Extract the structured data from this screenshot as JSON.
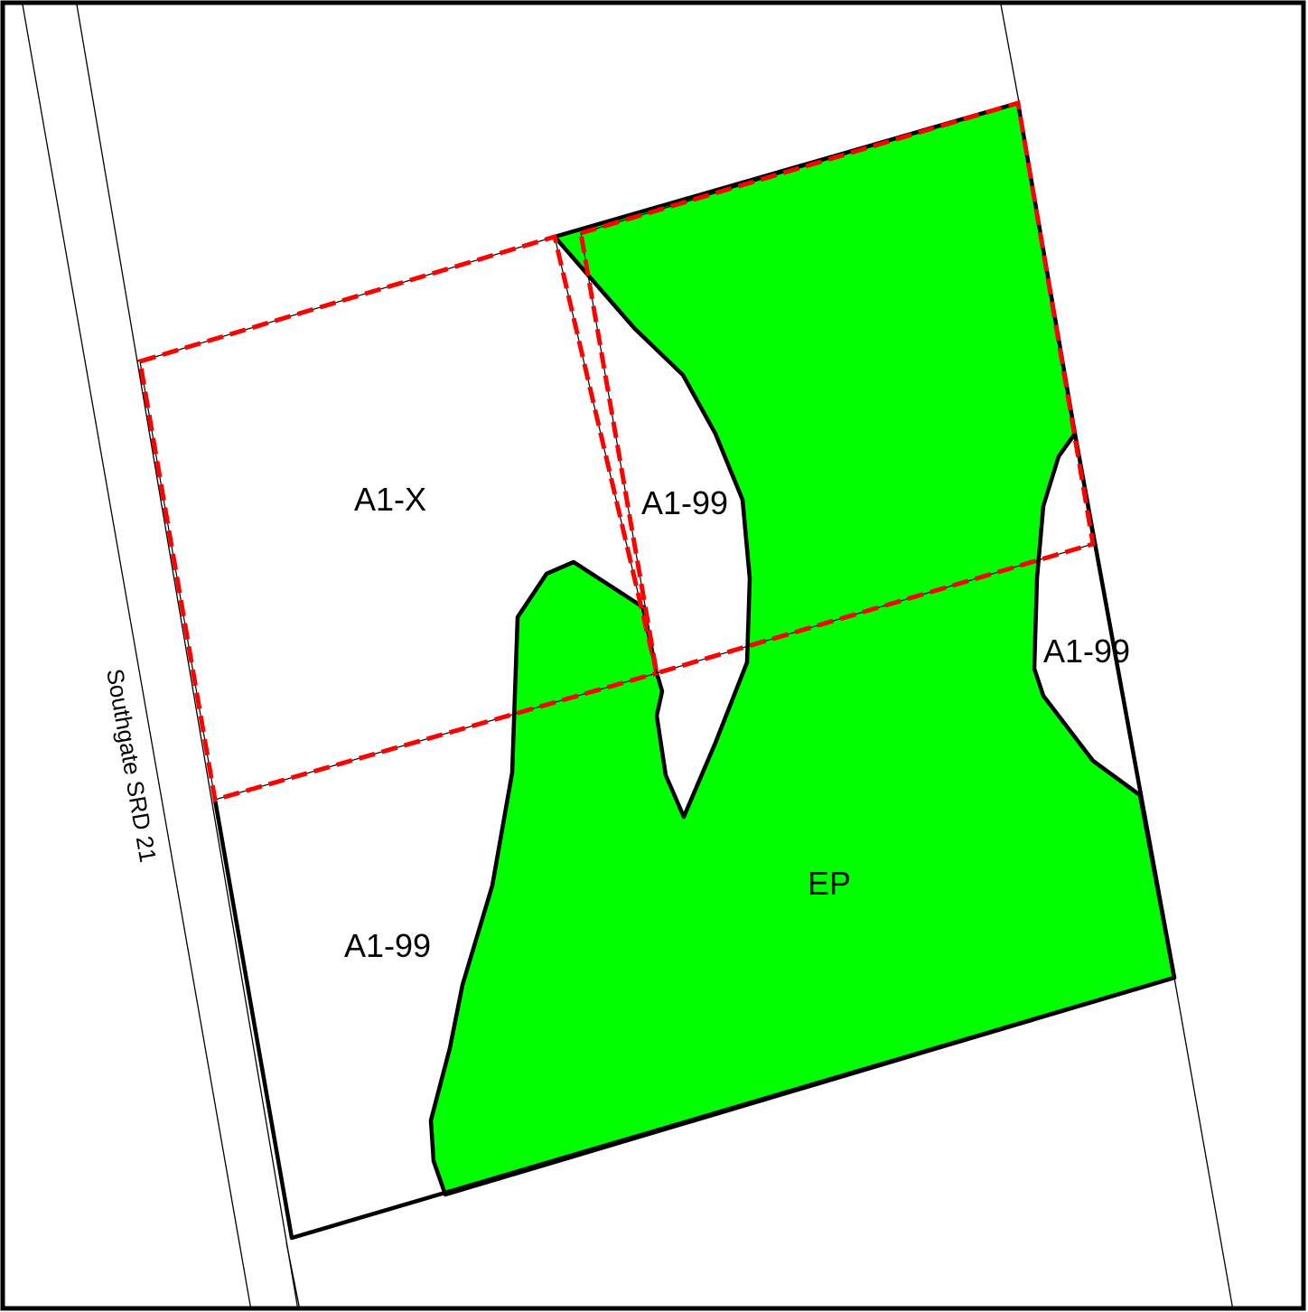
{
  "colors": {
    "ep_fill": "#00ff00",
    "boundary_dash": "#ff0000",
    "line": "#000000",
    "background": "#ffffff"
  },
  "road": {
    "label": "Southgate SRD 21"
  },
  "zones": {
    "a1x": "A1-X",
    "a1_99_center": "A1-99",
    "a1_99_right": "A1-99",
    "a1_99_lower": "A1-99",
    "ep": "EP"
  }
}
